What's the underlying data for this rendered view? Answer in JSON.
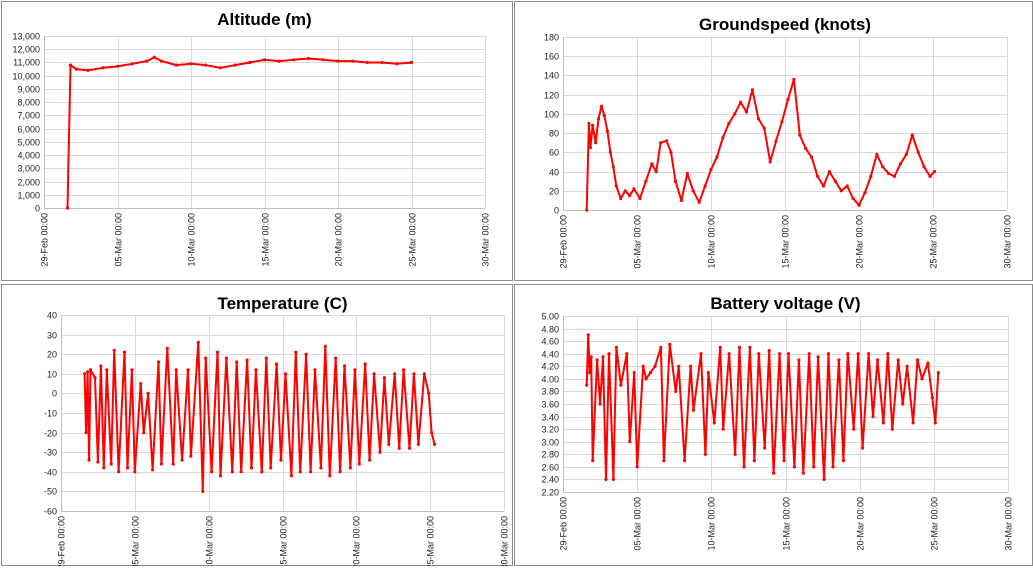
{
  "colors": {
    "series": "#ff0000",
    "grid": "#d9d9d9",
    "frame": "#8c8c8c"
  },
  "x_ticks": [
    "29-Feb 00:00",
    "05-Mar 00:00",
    "10-Mar 00:00",
    "15-Mar 00:00",
    "20-Mar 00:00",
    "25-Mar 00:00",
    "30-Mar 00:00"
  ],
  "chart_data": [
    {
      "type": "line",
      "title": "Altitude (m)",
      "xlabel": "",
      "ylabel": "",
      "x_unit": "days since 29-Feb 00:00",
      "xlim": [
        0,
        30
      ],
      "ylim": [
        0,
        13000
      ],
      "y_step": 1000,
      "y_ticks": [
        "0",
        "1,000",
        "2,000",
        "3,000",
        "4,000",
        "5,000",
        "6,000",
        "7,000",
        "8,000",
        "9,000",
        "10,000",
        "11,000",
        "12,000",
        "13,000"
      ],
      "grid": true,
      "series": [
        {
          "x": [
            1.6,
            1.8,
            2.2,
            3.0,
            4.0,
            5.0,
            6.0,
            7.0,
            7.5,
            8.0,
            9.0,
            10.0,
            11.0,
            12.0,
            13.0,
            14.0,
            15.0,
            16.0,
            17.0,
            18.0,
            19.0,
            20.0,
            21.0,
            22.0,
            23.0,
            24.0,
            25.0
          ],
          "y": [
            0,
            10800,
            10500,
            10400,
            10600,
            10700,
            10900,
            11100,
            11400,
            11100,
            10800,
            10900,
            10800,
            10600,
            10800,
            11000,
            11200,
            11100,
            11200,
            11300,
            11200,
            11100,
            11100,
            11000,
            11000,
            10900,
            11000
          ]
        }
      ]
    },
    {
      "type": "line",
      "title": "Groundspeed (knots)",
      "xlabel": "",
      "ylabel": "",
      "x_unit": "days since 29-Feb 00:00",
      "xlim": [
        0,
        30
      ],
      "ylim": [
        0,
        180
      ],
      "y_step": 20,
      "y_ticks": [
        "0",
        "20",
        "40",
        "60",
        "80",
        "100",
        "120",
        "140",
        "160",
        "180"
      ],
      "grid": true,
      "series": [
        {
          "x": [
            1.6,
            1.75,
            1.85,
            2.0,
            2.2,
            2.4,
            2.6,
            2.8,
            3.0,
            3.2,
            3.4,
            3.6,
            3.9,
            4.2,
            4.5,
            4.8,
            5.2,
            5.6,
            6.0,
            6.3,
            6.6,
            7.0,
            7.3,
            7.6,
            8.0,
            8.4,
            8.8,
            9.2,
            9.6,
            10.0,
            10.4,
            10.8,
            11.2,
            11.6,
            12.0,
            12.4,
            12.8,
            13.2,
            13.6,
            14.0,
            14.4,
            14.8,
            15.2,
            15.6,
            16.0,
            16.4,
            16.8,
            17.2,
            17.6,
            18.0,
            18.4,
            18.8,
            19.2,
            19.6,
            20.0,
            20.4,
            20.8,
            21.2,
            21.6,
            22.0,
            22.4,
            22.8,
            23.2,
            23.6,
            24.0,
            24.4,
            24.8,
            25.1
          ],
          "y": [
            0,
            90,
            65,
            88,
            70,
            95,
            108,
            98,
            82,
            60,
            45,
            25,
            12,
            20,
            15,
            22,
            12,
            30,
            48,
            40,
            70,
            72,
            60,
            30,
            10,
            38,
            20,
            8,
            25,
            42,
            55,
            75,
            90,
            100,
            112,
            102,
            125,
            95,
            85,
            50,
            72,
            92,
            115,
            136,
            78,
            64,
            55,
            35,
            25,
            40,
            30,
            20,
            25,
            12,
            5,
            18,
            35,
            58,
            45,
            38,
            35,
            48,
            58,
            78,
            60,
            45,
            35,
            40
          ]
        }
      ]
    },
    {
      "type": "line",
      "title": "Temperature (C)",
      "xlabel": "",
      "ylabel": "",
      "x_unit": "days since 29-Feb 00:00",
      "xlim": [
        0,
        30
      ],
      "ylim": [
        -60,
        40
      ],
      "y_step": 10,
      "y_ticks": [
        "-60",
        "-50",
        "-40",
        "-30",
        "-20",
        "-10",
        "0",
        "10",
        "20",
        "30",
        "40"
      ],
      "grid": true,
      "series": [
        {
          "x": [
            1.6,
            1.7,
            1.8,
            1.9,
            2.0,
            2.3,
            2.5,
            2.7,
            2.9,
            3.1,
            3.4,
            3.6,
            3.9,
            4.3,
            4.5,
            4.8,
            5.0,
            5.4,
            5.6,
            5.9,
            6.2,
            6.6,
            6.8,
            7.2,
            7.6,
            7.8,
            8.2,
            8.6,
            8.8,
            9.3,
            9.6,
            9.8,
            10.2,
            10.6,
            10.8,
            11.2,
            11.6,
            11.9,
            12.2,
            12.6,
            12.9,
            13.2,
            13.6,
            13.9,
            14.2,
            14.6,
            14.9,
            15.2,
            15.6,
            15.9,
            16.2,
            16.6,
            16.9,
            17.2,
            17.6,
            17.9,
            18.2,
            18.6,
            18.9,
            19.2,
            19.6,
            19.9,
            20.2,
            20.6,
            20.9,
            21.2,
            21.6,
            21.9,
            22.2,
            22.6,
            22.9,
            23.2,
            23.6,
            23.9,
            24.2,
            24.6,
            24.9,
            25.1,
            25.3
          ],
          "y": [
            10,
            -20,
            11,
            -34,
            12,
            8,
            -35,
            14,
            -38,
            12,
            -36,
            22,
            -40,
            21,
            -38,
            12,
            -40,
            5,
            -20,
            0,
            -39,
            16,
            -36,
            23,
            -36,
            12,
            -34,
            12,
            -32,
            26,
            -50,
            18,
            -40,
            21,
            -42,
            18,
            -40,
            16,
            -40,
            17,
            -38,
            12,
            -40,
            18,
            -38,
            15,
            -34,
            10,
            -42,
            21,
            -40,
            20,
            -40,
            12,
            -38,
            24,
            -42,
            18,
            -40,
            14,
            -38,
            12,
            -36,
            15,
            -34,
            10,
            -30,
            8,
            -26,
            10,
            -28,
            12,
            -28,
            10,
            -26,
            10,
            0,
            -20,
            -26
          ]
        }
      ]
    },
    {
      "type": "line",
      "title": "Battery voltage (V)",
      "xlabel": "",
      "ylabel": "",
      "x_unit": "days since 29-Feb 00:00",
      "xlim": [
        0,
        30
      ],
      "ylim": [
        2.2,
        5.0
      ],
      "y_step": 0.2,
      "y_ticks": [
        "2.20",
        "2.40",
        "2.60",
        "2.80",
        "3.00",
        "3.20",
        "3.40",
        "3.60",
        "3.80",
        "4.00",
        "4.20",
        "4.40",
        "4.60",
        "4.80",
        "5.00"
      ],
      "grid": true,
      "series": [
        {
          "x": [
            1.6,
            1.7,
            1.8,
            1.9,
            2.0,
            2.3,
            2.5,
            2.7,
            2.9,
            3.1,
            3.4,
            3.6,
            3.9,
            4.3,
            4.5,
            4.8,
            5.0,
            5.4,
            5.6,
            5.9,
            6.2,
            6.6,
            6.8,
            7.2,
            7.6,
            7.8,
            8.2,
            8.6,
            8.8,
            9.3,
            9.6,
            9.8,
            10.2,
            10.6,
            10.8,
            11.2,
            11.6,
            11.9,
            12.2,
            12.6,
            12.9,
            13.2,
            13.6,
            13.9,
            14.2,
            14.6,
            14.9,
            15.2,
            15.6,
            15.9,
            16.2,
            16.6,
            16.9,
            17.2,
            17.6,
            17.9,
            18.2,
            18.6,
            18.9,
            19.2,
            19.6,
            19.9,
            20.2,
            20.6,
            20.9,
            21.2,
            21.6,
            21.9,
            22.2,
            22.6,
            22.9,
            23.2,
            23.6,
            23.9,
            24.2,
            24.6,
            24.9,
            25.1,
            25.3
          ],
          "y": [
            3.9,
            4.7,
            4.1,
            4.35,
            2.7,
            4.3,
            3.6,
            4.35,
            2.4,
            4.4,
            2.4,
            4.5,
            3.9,
            4.4,
            3.0,
            4.1,
            2.6,
            4.2,
            4.0,
            4.1,
            4.2,
            4.5,
            2.7,
            4.55,
            3.8,
            4.2,
            2.7,
            4.2,
            3.5,
            4.4,
            2.8,
            4.1,
            3.3,
            4.5,
            3.2,
            4.4,
            2.8,
            4.5,
            2.6,
            4.5,
            2.7,
            4.4,
            2.9,
            4.45,
            2.5,
            4.4,
            2.7,
            4.4,
            2.6,
            4.3,
            2.5,
            4.4,
            2.6,
            4.35,
            2.4,
            4.4,
            2.6,
            4.3,
            2.7,
            4.4,
            3.2,
            4.4,
            2.9,
            4.4,
            3.4,
            4.3,
            3.3,
            4.4,
            3.2,
            4.3,
            3.6,
            4.2,
            3.3,
            4.3,
            4.0,
            4.25,
            3.7,
            3.3,
            4.1
          ]
        }
      ]
    }
  ]
}
